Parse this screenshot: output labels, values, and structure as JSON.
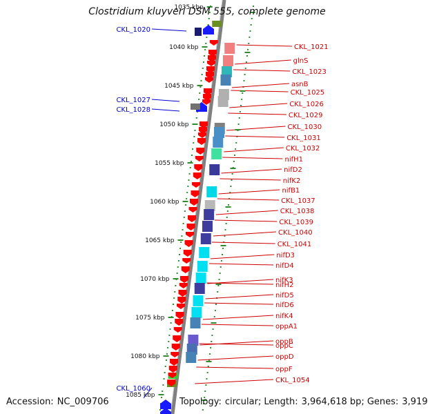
{
  "title": "Clostridium kluyveri DSM 555, complete genome",
  "footer": {
    "accession_label": "Accession:",
    "accession": "NC_009706",
    "topology_label": "Topology:",
    "topology": "circular",
    "length_label": "Length:",
    "length": "3,964,618 bp",
    "genes_label": "Genes:",
    "genes": "3,919"
  },
  "colors": {
    "forward_gene": "#ff0000",
    "reverse_gene": "#1a1aff",
    "left_label": "#0000cc",
    "right_label": "#cc0000",
    "scale_dots": "#2e8b2e",
    "backbone": "#808080"
  },
  "ruler": {
    "unit": "kbp",
    "ticks": [
      "1035 kbp",
      "1040 kbp",
      "1045 kbp",
      "1050 kbp",
      "1055 kbp",
      "1060 kbp",
      "1065 kbp",
      "1070 kbp",
      "1075 kbp",
      "1080 kbp",
      "1085 kbp"
    ]
  },
  "left_labels": [
    "CKL_1020",
    "CKL_1027",
    "CKL_1028",
    "CKL_1060"
  ],
  "right_labels": [
    "CKL_1021",
    "glnS",
    "CKL_1023",
    "asnB",
    "CKL_1025",
    "CKL_1026",
    "CKL_1029",
    "CKL_1030",
    "CKL_1031",
    "CKL_1032",
    "nifH1",
    "nifD2",
    "nifK2",
    "nifB1",
    "CKL_1037",
    "CKL_1038",
    "CKL_1039",
    "CKL_1040",
    "CKL_1041",
    "nifD3",
    "nifD4",
    "nifK3",
    "nifH2",
    "nifD5",
    "nifD6",
    "nifK4",
    "oppA1",
    "oppB",
    "oppC",
    "oppD",
    "oppF",
    "CKL_1054"
  ]
}
